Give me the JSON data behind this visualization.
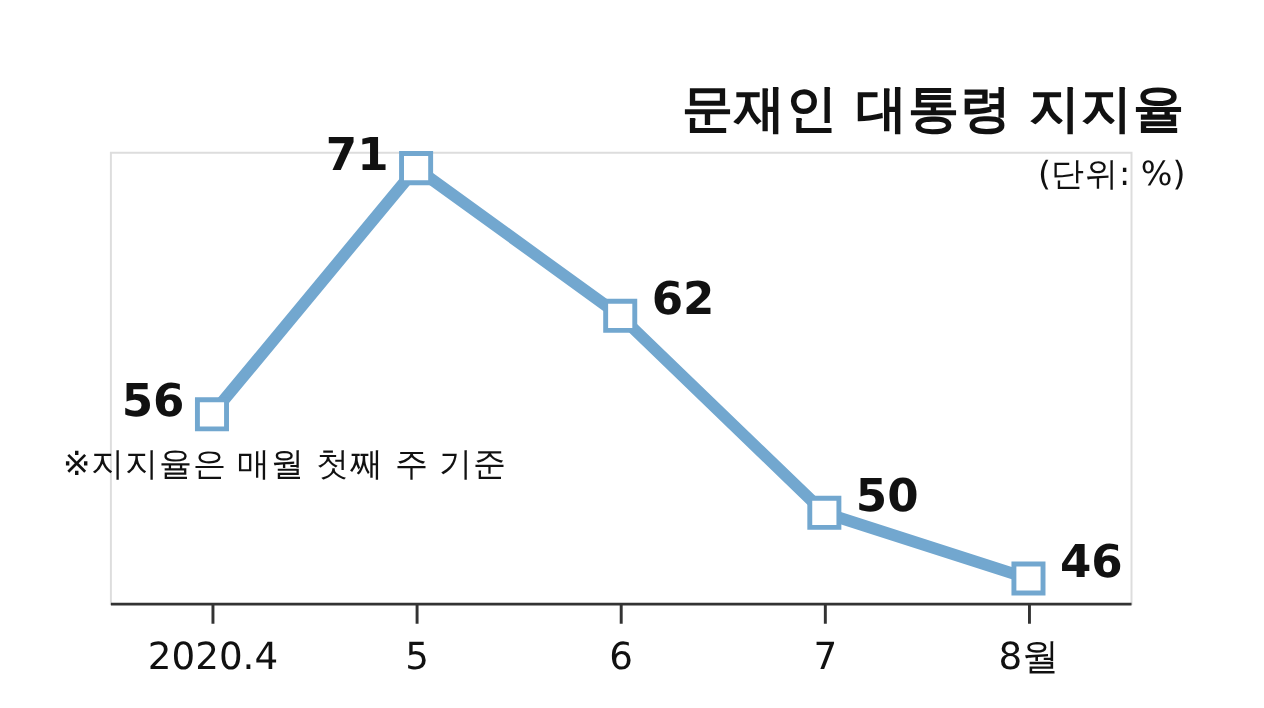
{
  "chart_data": {
    "type": "line",
    "title": "문재인 대통령 지지율",
    "subtitle": "(단위: %)",
    "annotations": [
      "※지지율은 매월 첫째 주 기준"
    ],
    "categories": [
      "2020.4",
      "5",
      "6",
      "7",
      "8월"
    ],
    "series": [
      {
        "color": "#72a7cf",
        "values": [
          56,
          71,
          62,
          50,
          46
        ]
      }
    ],
    "data_labels": true,
    "marker": "square",
    "grid": false,
    "tick_labels": "x"
  }
}
